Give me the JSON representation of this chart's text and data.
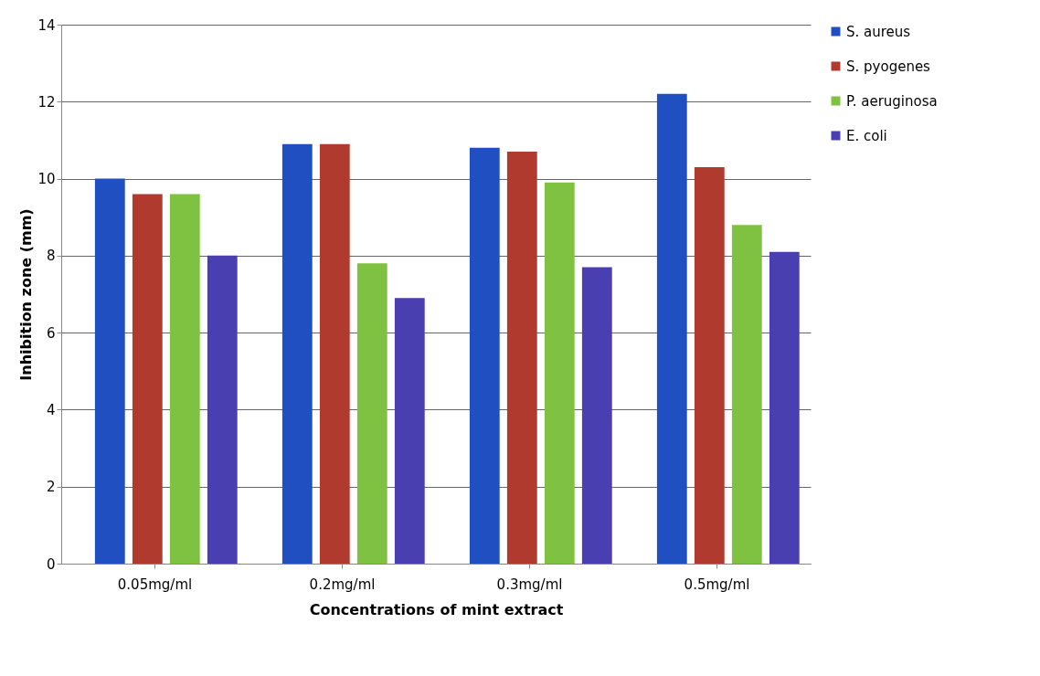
{
  "chart_data": {
    "type": "bar",
    "xlabel": "Concentrations of mint extract",
    "ylabel": "Inhibition zone (mm)",
    "categories": [
      "0.05mg/ml",
      "0.2mg/ml",
      "0.3mg/ml",
      "0.5mg/ml"
    ],
    "series": [
      {
        "name": "S. aureus",
        "color": "#1f4fc0",
        "values": [
          10.0,
          10.9,
          10.8,
          12.2
        ]
      },
      {
        "name": "S. pyogenes",
        "color": "#b03a2e",
        "values": [
          9.6,
          10.9,
          10.7,
          10.3
        ]
      },
      {
        "name": "P. aeruginosa",
        "color": "#7fc241",
        "values": [
          9.6,
          7.8,
          9.9,
          8.8
        ]
      },
      {
        "name": "E. coli",
        "color": "#4a3fb0",
        "values": [
          8.0,
          6.9,
          7.7,
          8.1
        ]
      }
    ],
    "ylim": [
      0,
      14
    ],
    "yticks": [
      0,
      2,
      4,
      6,
      8,
      10,
      12,
      14
    ],
    "grid": "y",
    "legend": "right"
  }
}
